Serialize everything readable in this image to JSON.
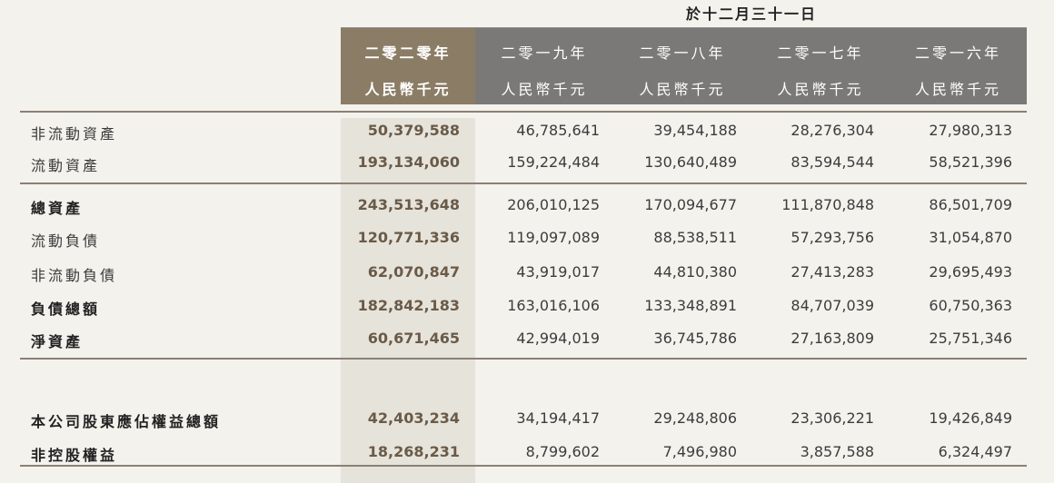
{
  "header": {
    "period": "於十二月三十一日",
    "columns": [
      {
        "year": "二零二零年",
        "unit": "人民幣千元"
      },
      {
        "year": "二零一九年",
        "unit": "人民幣千元"
      },
      {
        "year": "二零一八年",
        "unit": "人民幣千元"
      },
      {
        "year": "二零一七年",
        "unit": "人民幣千元"
      },
      {
        "year": "二零一六年",
        "unit": "人民幣千元"
      }
    ]
  },
  "rows": [
    {
      "label": "非流動資產",
      "values": [
        "50,379,588",
        "46,785,641",
        "39,454,188",
        "28,276,304",
        "27,980,313"
      ]
    },
    {
      "label": "流動資產",
      "values": [
        "193,134,060",
        "159,224,484",
        "130,640,489",
        "83,594,544",
        "58,521,396"
      ]
    },
    {
      "label": "總資產",
      "values": [
        "243,513,648",
        "206,010,125",
        "170,094,677",
        "111,870,848",
        "86,501,709"
      ]
    },
    {
      "label": "流動負債",
      "values": [
        "120,771,336",
        "119,097,089",
        "88,538,511",
        "57,293,756",
        "31,054,870"
      ]
    },
    {
      "label": "非流動負債",
      "values": [
        "62,070,847",
        "43,919,017",
        "44,810,380",
        "27,413,283",
        "29,695,493"
      ]
    },
    {
      "label": "負債總額",
      "values": [
        "182,842,183",
        "163,016,106",
        "133,348,891",
        "84,707,039",
        "60,750,363"
      ]
    },
    {
      "label": "淨資產",
      "values": [
        "60,671,465",
        "42,994,019",
        "36,745,786",
        "27,163,809",
        "25,751,346"
      ]
    },
    {
      "label": "本公司股東應佔權益總額",
      "values": [
        "42,403,234",
        "34,194,417",
        "29,248,806",
        "23,306,221",
        "19,426,849"
      ]
    },
    {
      "label": "非控股權益",
      "values": [
        "18,268,231",
        "8,799,602",
        "7,496,980",
        "3,857,588",
        "6,324,497"
      ]
    }
  ]
}
